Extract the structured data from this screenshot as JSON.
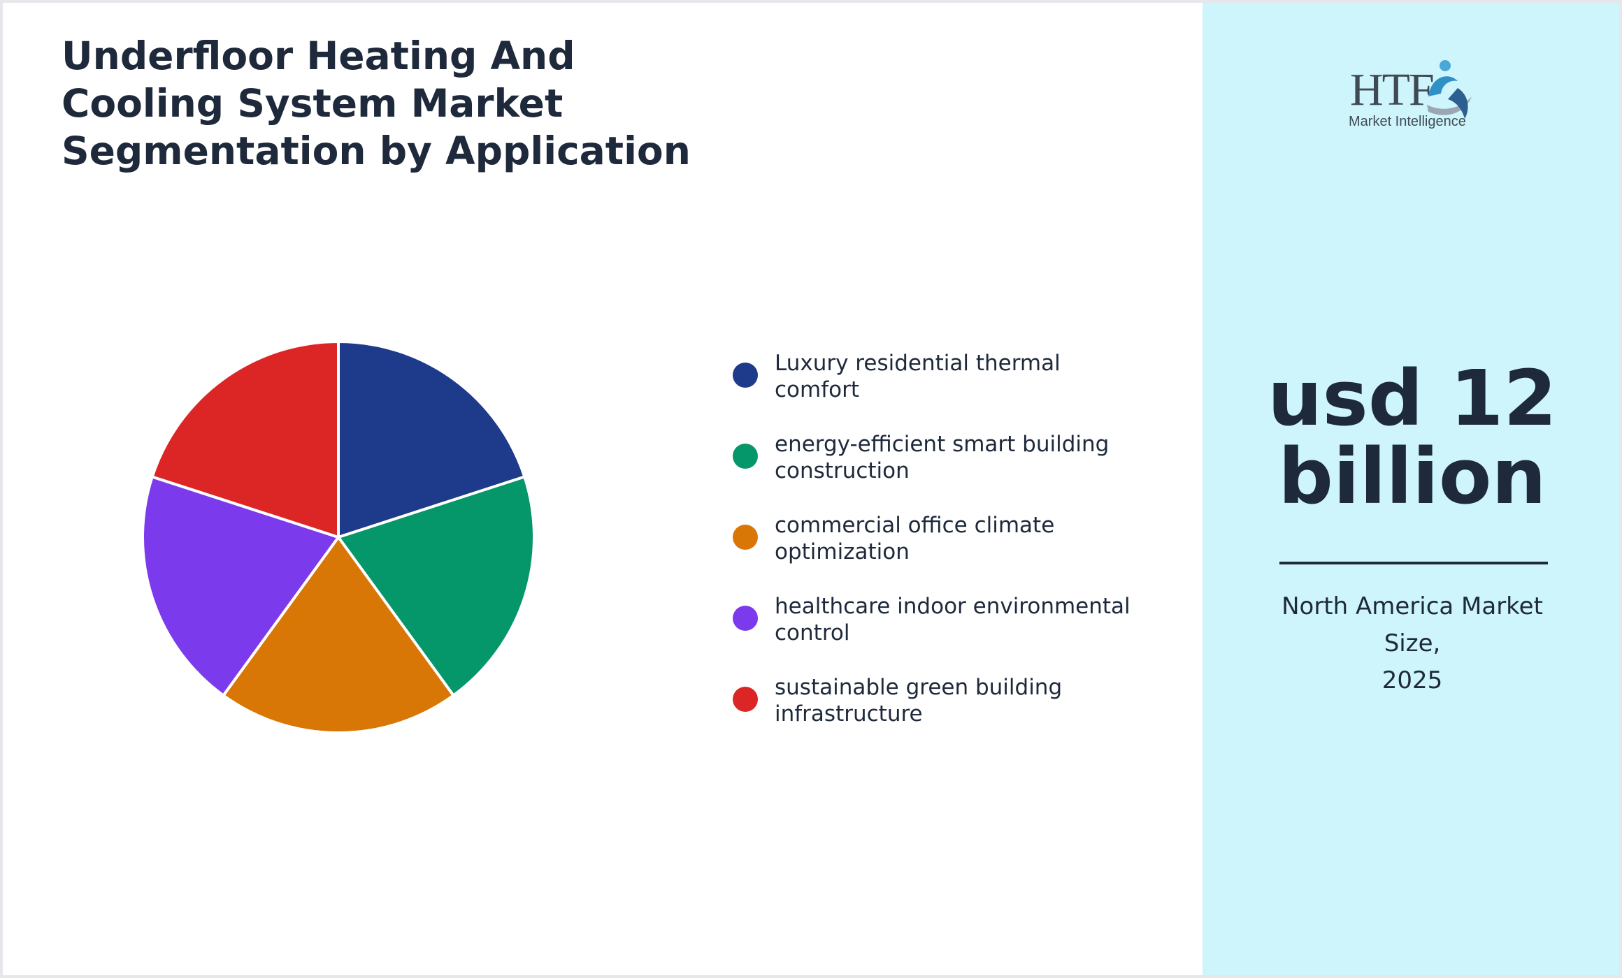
{
  "title_lines": [
    "Underfloor Heating And",
    "Cooling System Market",
    "Segmentation by Application"
  ],
  "chart_data": {
    "type": "pie",
    "title": "Underfloor Heating And Cooling System Market Segmentation by Application",
    "categories": [
      "Luxury residential thermal comfort",
      "energy-efficient smart building construction",
      "commercial office climate optimization",
      "healthcare indoor environmental control",
      "sustainable green building infrastructure"
    ],
    "values": [
      20,
      20,
      20,
      20,
      20
    ],
    "colors": [
      "#1e3a8a",
      "#059669",
      "#d97706",
      "#7c3aed",
      "#dc2626"
    ],
    "legend_labels": [
      [
        "Luxury residential thermal",
        "comfort"
      ],
      [
        "energy-efficient smart building",
        "construction"
      ],
      [
        "commercial office climate",
        "optimization"
      ],
      [
        "healthcare indoor environmental",
        "control"
      ],
      [
        "sustainable green building",
        "infrastructure"
      ]
    ],
    "legend_position": "right"
  },
  "side_panel": {
    "value_lines": [
      "usd 12",
      "billion"
    ],
    "caption_lines": [
      "North America Market",
      "Size,",
      "2025"
    ],
    "background_color": "#cff5fc"
  },
  "logo": {
    "text": "HTF",
    "subtext": "Market Intelligence",
    "icon": "htf-swirl-logo-icon"
  }
}
